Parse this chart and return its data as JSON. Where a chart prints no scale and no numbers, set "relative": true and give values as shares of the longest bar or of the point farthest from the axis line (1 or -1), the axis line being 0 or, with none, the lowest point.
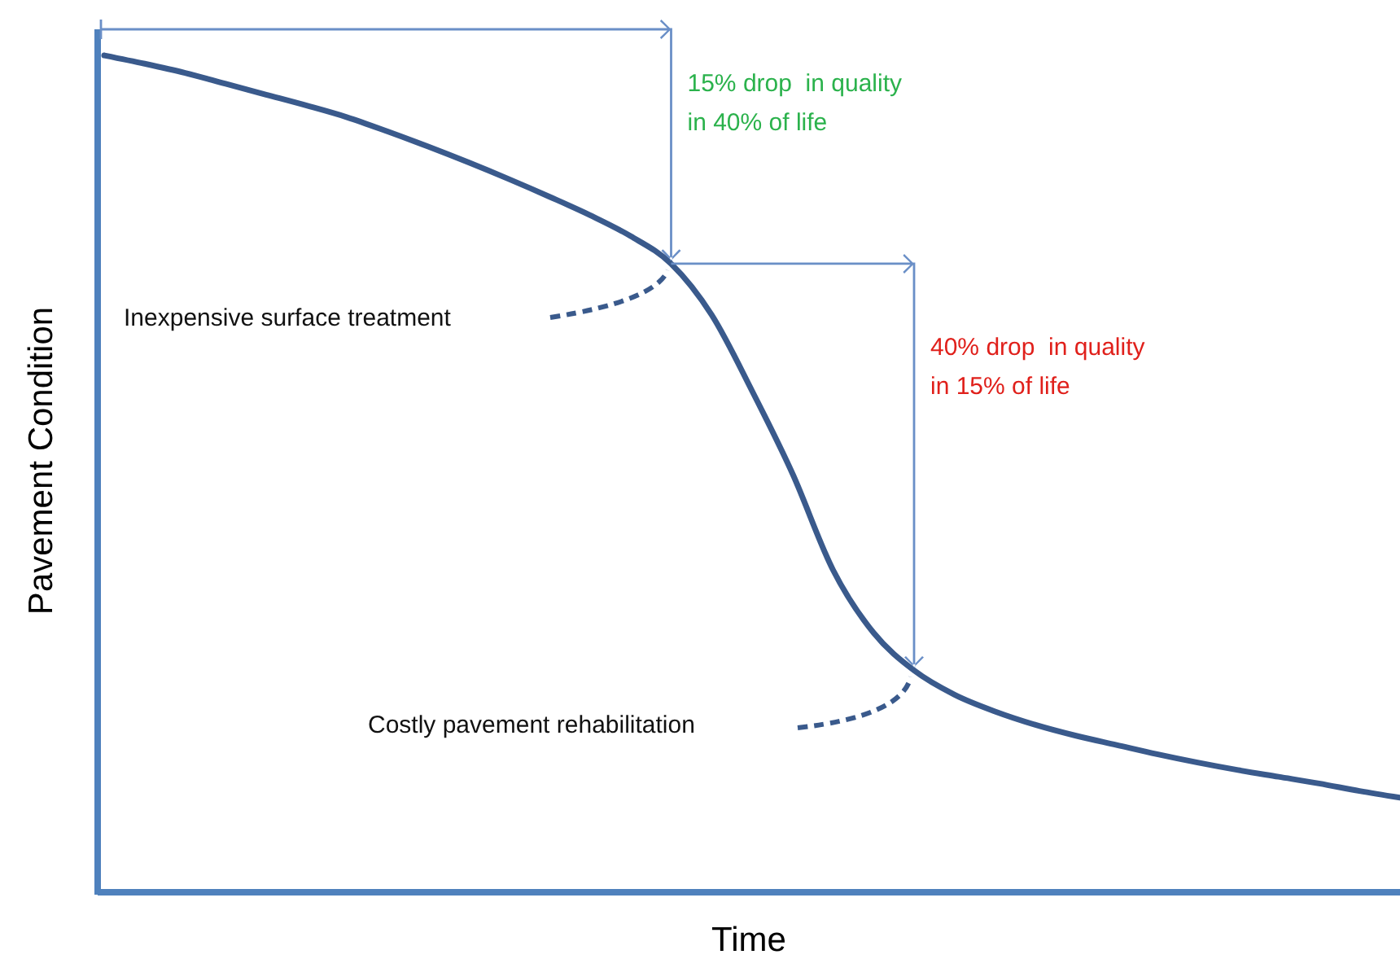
{
  "chart_data": {
    "type": "line",
    "relative": true,
    "xlabel": "Time",
    "ylabel": "Pavement Condition",
    "categories": [
      null,
      null,
      null,
      null,
      null,
      null,
      null,
      null,
      null,
      null,
      null,
      null,
      null,
      null,
      null,
      null,
      null,
      null,
      null,
      null,
      null,
      null,
      null,
      null,
      null,
      null,
      null,
      null,
      null,
      null,
      null,
      null,
      null
    ],
    "series": [
      {
        "color": "#3a5a8c",
        "values": [
          1,
          0.99,
          0.979,
          0.966,
          0.953,
          0.94,
          0.926,
          0.909,
          0.891,
          0.872,
          0.852,
          0.831,
          0.809,
          0.784,
          0.751,
          0.69,
          0.599,
          0.5,
          0.385,
          0.31,
          0.265,
          0.236,
          0.216,
          0.2,
          0.187,
          0.176,
          0.165,
          0.155,
          0.146,
          0.138,
          0.13,
          0.121,
          0.113
        ]
      }
    ],
    "annotations": [
      "15% drop  in quality\nin 40% of life",
      "40% drop  in quality\nin 15% of life",
      "Inexpensive surface treatment",
      "Costly pavement rehabilitation"
    ]
  }
}
